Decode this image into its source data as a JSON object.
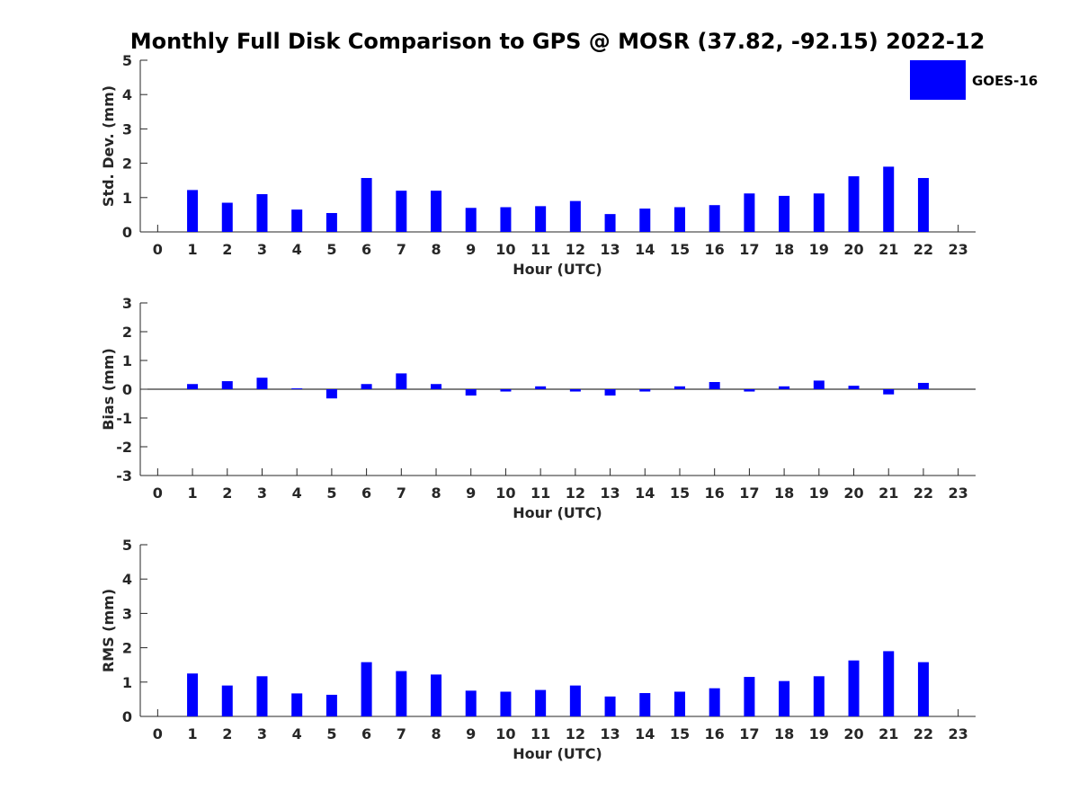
{
  "title": "Monthly Full Disk Comparison to GPS @ MOSR (37.82, -92.15) 2022-12",
  "legend": {
    "label": "GOES-16",
    "color": "#0000ff"
  },
  "chart_data": [
    {
      "type": "bar",
      "panel": "std-dev",
      "title": "Monthly Full Disk Comparison to GPS @ MOSR (37.82, -92.15) 2022-12",
      "xlabel": "Hour (UTC)",
      "ylabel": "Std. Dev. (mm)",
      "xlim": [
        -0.5,
        23.5
      ],
      "ylim": [
        0,
        5
      ],
      "yticks": [
        "0",
        "1",
        "2",
        "3",
        "4",
        "5"
      ],
      "x": [
        1,
        2,
        3,
        4,
        5,
        6,
        7,
        8,
        9,
        10,
        11,
        12,
        13,
        14,
        15,
        16,
        17,
        18,
        19,
        20,
        21,
        22
      ],
      "xticks": [
        "0",
        "1",
        "2",
        "3",
        "4",
        "5",
        "6",
        "7",
        "8",
        "9",
        "10",
        "11",
        "12",
        "13",
        "14",
        "15",
        "16",
        "17",
        "18",
        "19",
        "20",
        "21",
        "22",
        "23"
      ],
      "series": [
        {
          "name": "GOES-16",
          "values": [
            1.22,
            0.85,
            1.1,
            0.65,
            0.55,
            1.57,
            1.2,
            1.2,
            0.7,
            0.72,
            0.75,
            0.9,
            0.52,
            0.68,
            0.72,
            0.78,
            1.12,
            1.05,
            1.12,
            1.62,
            1.9,
            1.57
          ]
        }
      ]
    },
    {
      "type": "bar",
      "panel": "bias",
      "xlabel": "Hour (UTC)",
      "ylabel": "Bias (mm)",
      "xlim": [
        -0.5,
        23.5
      ],
      "ylim": [
        -3,
        3
      ],
      "yticks": [
        "-3",
        "-2",
        "-1",
        "0",
        "1",
        "2",
        "3"
      ],
      "x": [
        1,
        2,
        3,
        4,
        5,
        6,
        7,
        8,
        9,
        10,
        11,
        12,
        13,
        14,
        15,
        16,
        17,
        18,
        19,
        20,
        21,
        22
      ],
      "xticks": [
        "0",
        "1",
        "2",
        "3",
        "4",
        "5",
        "6",
        "7",
        "8",
        "9",
        "10",
        "11",
        "12",
        "13",
        "14",
        "15",
        "16",
        "17",
        "18",
        "19",
        "20",
        "21",
        "22",
        "23"
      ],
      "series": [
        {
          "name": "GOES-16",
          "values": [
            0.18,
            0.28,
            0.4,
            0.03,
            -0.32,
            0.18,
            0.55,
            0.18,
            -0.22,
            -0.08,
            0.1,
            -0.08,
            -0.22,
            -0.08,
            0.1,
            0.25,
            -0.08,
            0.1,
            0.3,
            0.12,
            -0.18,
            0.22
          ]
        }
      ]
    },
    {
      "type": "bar",
      "panel": "rms",
      "xlabel": "Hour (UTC)",
      "ylabel": "RMS (mm)",
      "xlim": [
        -0.5,
        23.5
      ],
      "ylim": [
        0,
        5
      ],
      "yticks": [
        "0",
        "1",
        "2",
        "3",
        "4",
        "5"
      ],
      "x": [
        1,
        2,
        3,
        4,
        5,
        6,
        7,
        8,
        9,
        10,
        11,
        12,
        13,
        14,
        15,
        16,
        17,
        18,
        19,
        20,
        21,
        22
      ],
      "xticks": [
        "0",
        "1",
        "2",
        "3",
        "4",
        "5",
        "6",
        "7",
        "8",
        "9",
        "10",
        "11",
        "12",
        "13",
        "14",
        "15",
        "16",
        "17",
        "18",
        "19",
        "20",
        "21",
        "22",
        "23"
      ],
      "series": [
        {
          "name": "GOES-16",
          "values": [
            1.25,
            0.9,
            1.17,
            0.67,
            0.63,
            1.58,
            1.32,
            1.22,
            0.75,
            0.72,
            0.77,
            0.9,
            0.58,
            0.68,
            0.72,
            0.82,
            1.15,
            1.03,
            1.17,
            1.63,
            1.9,
            1.58
          ]
        }
      ]
    }
  ]
}
